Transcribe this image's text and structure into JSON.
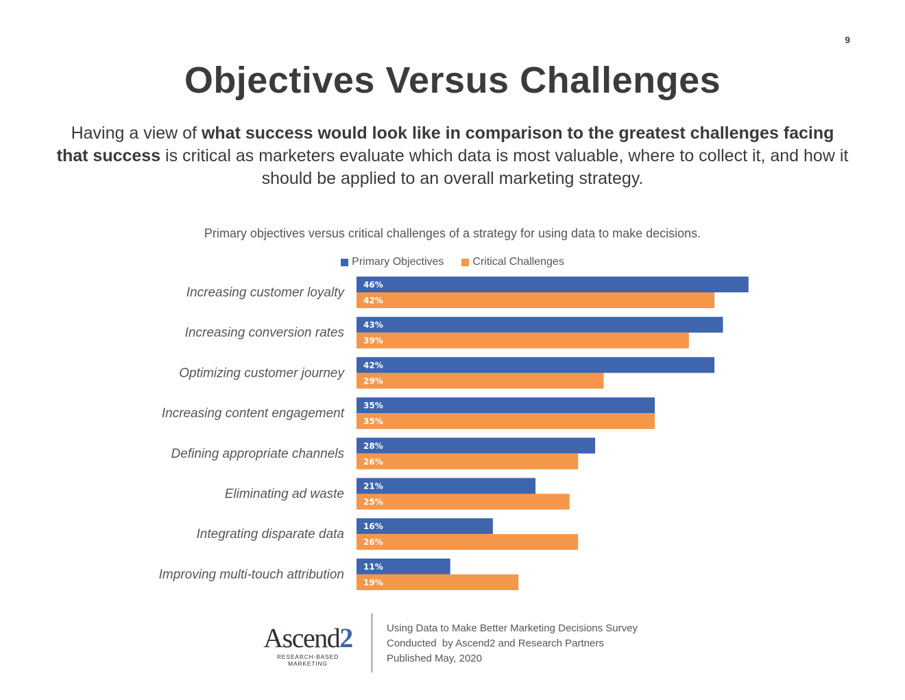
{
  "page_number": "9",
  "title": "Objectives Versus Challenges",
  "intro": {
    "part1": "Having a view of ",
    "bold1": "what success would look like in comparison to the greatest challenges facing that success",
    "part2": " is critical as marketers evaluate which data is most valuable, where to collect it, and how it should be applied to an overall marketing strategy."
  },
  "colors": {
    "objectives": "#3e65ae",
    "challenges": "#f5974a"
  },
  "chart_data": {
    "type": "bar",
    "orientation": "horizontal",
    "title": "Primary objectives versus critical challenges of a strategy for using data to make decisions.",
    "categories": [
      "Increasing customer loyalty",
      "Increasing conversion rates",
      "Optimizing customer journey",
      "Increasing content engagement",
      "Defining appropriate channels",
      "Eliminating ad waste",
      "Integrating disparate data",
      "Improving multi-touch attribution"
    ],
    "series": [
      {
        "name": "Primary Objectives",
        "values": [
          46,
          43,
          42,
          35,
          28,
          21,
          16,
          11
        ]
      },
      {
        "name": "Critical Challenges",
        "values": [
          42,
          39,
          29,
          35,
          26,
          25,
          26,
          19
        ]
      }
    ],
    "value_suffix": "%",
    "xlim": [
      0,
      50
    ],
    "legend": "top-center",
    "grid": false
  },
  "footer": {
    "logo_word": "Ascend",
    "logo_two": "2",
    "logo_tagline": "RESEARCH-BASED MARKETING",
    "line1": "Using Data to Make Better Marketing Decisions Survey",
    "line2": "Conducted  by Ascend2 and Research Partners",
    "line3": "Published May, 2020"
  }
}
